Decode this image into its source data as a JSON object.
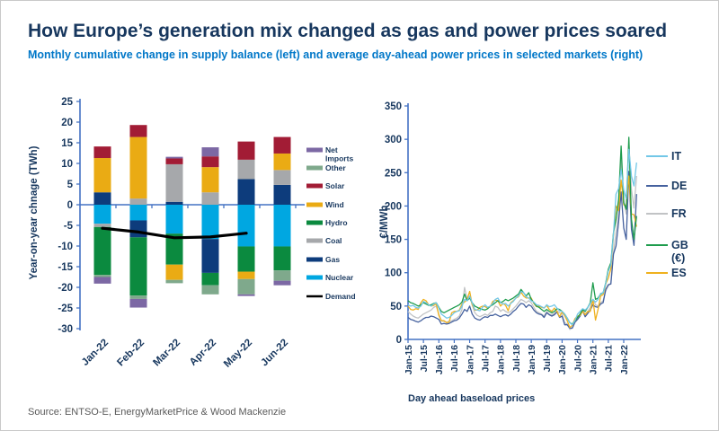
{
  "header": {
    "title": "How Europe’s generation mix changed as gas and power prices soared",
    "subtitle": "Monthly cumulative change in supply balance (left) and average day-ahead power prices in selected markets (right)"
  },
  "source": "Source: ENTSO-E, EnergyMarketPrice & Wood Mackenzie",
  "colors": {
    "title_navy": "#17375E",
    "subtitle_blue": "#0077C8",
    "axis_blue": "#4472C4",
    "source_gray": "#595959"
  },
  "chart_data": [
    {
      "type": "bar",
      "name": "supply-balance-stacked-bars",
      "ylabel": "Year-on-year chnage (TWh)",
      "ylim": [
        -30,
        25
      ],
      "ytick_step": 5,
      "categories": [
        "Jan-22",
        "Feb-22",
        "Mar-22",
        "Apr-22",
        "May-22",
        "Jun-22"
      ],
      "series": [
        {
          "name": "Net Imports",
          "color": "#7C68A4",
          "values": [
            -1.6,
            -2.1,
            0.4,
            2.2,
            -0.4,
            -1.1
          ]
        },
        {
          "name": "Other",
          "color": "#7FA98C",
          "values": [
            -0.5,
            -0.8,
            -0.8,
            -2.2,
            -3.7,
            -2.5
          ]
        },
        {
          "name": "Solar",
          "color": "#A21C35",
          "values": [
            2.8,
            2.9,
            1.4,
            2.6,
            4.4,
            4.0
          ]
        },
        {
          "name": "Wind",
          "color": "#EAAB14",
          "values": [
            8.3,
            14.9,
            -3.7,
            6.1,
            -1.8,
            4.0
          ]
        },
        {
          "name": "Hydro",
          "color": "#0B8A3F",
          "values": [
            -11.6,
            -14.1,
            -7.5,
            -3.0,
            -6.1,
            -5.8
          ]
        },
        {
          "name": "Coal",
          "color": "#A6A8AB",
          "values": [
            -0.8,
            1.5,
            9.1,
            3.0,
            4.7,
            3.6
          ]
        },
        {
          "name": "Gas",
          "color": "#0D3C7C",
          "values": [
            3.0,
            -4.1,
            0.7,
            -8.2,
            6.2,
            4.8
          ]
        },
        {
          "name": "Nuclear",
          "color": "#00A7E1",
          "values": [
            -4.6,
            -3.8,
            -7.0,
            -8.3,
            -10.1,
            -10.1
          ]
        },
        {
          "name": "Demand",
          "color": "#000000",
          "style": "line",
          "values": [
            -5.7,
            -6.6,
            -8.0,
            -7.8,
            -6.9,
            null
          ]
        }
      ],
      "legend_position": "right",
      "grid": false
    },
    {
      "type": "line",
      "name": "day-ahead-power-prices",
      "ylabel": "€/MWh",
      "caption": "Day ahead baseload prices",
      "ylim": [
        0,
        350
      ],
      "ytick_step": 50,
      "x_start": "Jan-15",
      "x_end": "Jun-22",
      "x_tick_labels": [
        "Jan-15",
        "Jul-15",
        "Jan-16",
        "Jul-16",
        "Jan-17",
        "Jul-17",
        "Jan-18",
        "Jul-18",
        "Jan-19",
        "Jul-19",
        "Jan-20",
        "Jul-20",
        "Jan-21",
        "Jul-21",
        "Jan-22"
      ],
      "series": [
        {
          "name": "IT",
          "color": "#72C7E7",
          "values": [
            52,
            50,
            51,
            48,
            47,
            50,
            57,
            55,
            52,
            50,
            53,
            55,
            47,
            38,
            35,
            32,
            33,
            36,
            40,
            42,
            43,
            50,
            60,
            58,
            65,
            55,
            45,
            44,
            43,
            48,
            52,
            48,
            50,
            54,
            60,
            62,
            55,
            53,
            54,
            50,
            54,
            57,
            62,
            65,
            72,
            70,
            64,
            62,
            58,
            56,
            52,
            51,
            49,
            47,
            52,
            49,
            50,
            52,
            47,
            43,
            42,
            38,
            32,
            25,
            22,
            28,
            38,
            42,
            46,
            44,
            48,
            54,
            60,
            56,
            60,
            69,
            70,
            84,
            102,
            112,
            158,
            218,
            226,
            255,
            224,
            211,
            285,
            245,
            230,
            265
          ]
        },
        {
          "name": "DE",
          "color": "#45619E",
          "values": [
            33,
            30,
            29,
            27,
            26,
            28,
            31,
            33,
            33,
            35,
            34,
            32,
            30,
            23,
            24,
            23,
            24,
            26,
            28,
            29,
            32,
            38,
            45,
            42,
            50,
            38,
            32,
            30,
            29,
            32,
            34,
            33,
            36,
            36,
            38,
            36,
            34,
            36,
            37,
            35,
            38,
            42,
            45,
            50,
            54,
            53,
            48,
            52,
            50,
            44,
            40,
            38,
            37,
            33,
            40,
            37,
            35,
            37,
            41,
            33,
            35,
            22,
            22,
            17,
            17,
            26,
            30,
            35,
            43,
            34,
            39,
            44,
            52,
            49,
            48,
            53,
            55,
            75,
            82,
            83,
            128,
            140,
            176,
            221,
            167,
            150,
            252,
            165,
            141,
            218
          ]
        },
        {
          "name": "FR",
          "color": "#C1C3C5",
          "values": [
            42,
            38,
            35,
            33,
            32,
            35,
            38,
            40,
            42,
            44,
            48,
            50,
            38,
            28,
            27,
            26,
            27,
            28,
            30,
            32,
            35,
            45,
            78,
            60,
            65,
            52,
            40,
            36,
            34,
            36,
            38,
            36,
            40,
            42,
            50,
            48,
            42,
            45,
            42,
            40,
            42,
            46,
            50,
            55,
            60,
            58,
            55,
            58,
            55,
            48,
            42,
            40,
            38,
            35,
            42,
            38,
            37,
            39,
            43,
            40,
            38,
            25,
            23,
            15,
            17,
            25,
            30,
            35,
            45,
            38,
            42,
            48,
            60,
            52,
            50,
            55,
            58,
            73,
            80,
            85,
            130,
            160,
            190,
            275,
            208,
            188,
            295,
            225,
            197,
            245
          ]
        },
        {
          "name": "GB (€)",
          "color": "#1E9C4D",
          "values": [
            58,
            55,
            54,
            52,
            50,
            52,
            55,
            53,
            51,
            52,
            54,
            55,
            48,
            42,
            40,
            42,
            44,
            46,
            48,
            50,
            52,
            56,
            68,
            58,
            62,
            55,
            50,
            48,
            46,
            45,
            44,
            46,
            50,
            52,
            55,
            58,
            55,
            57,
            60,
            58,
            60,
            62,
            65,
            68,
            75,
            70,
            65,
            70,
            60,
            55,
            50,
            48,
            45,
            42,
            45,
            42,
            40,
            42,
            46,
            45,
            42,
            38,
            32,
            25,
            23,
            28,
            33,
            38,
            45,
            42,
            48,
            55,
            85,
            60,
            62,
            68,
            70,
            85,
            105,
            115,
            160,
            180,
            210,
            290,
            205,
            195,
            303,
            180,
            150,
            185
          ]
        },
        {
          "name": "ES",
          "color": "#EFB11E",
          "values": [
            50,
            45,
            44,
            46,
            45,
            55,
            60,
            58,
            52,
            50,
            51,
            53,
            36,
            28,
            28,
            25,
            26,
            40,
            42,
            42,
            44,
            53,
            56,
            60,
            72,
            52,
            44,
            44,
            48,
            50,
            49,
            47,
            49,
            57,
            59,
            58,
            50,
            54,
            51,
            43,
            55,
            58,
            62,
            64,
            71,
            65,
            62,
            62,
            62,
            54,
            49,
            50,
            48,
            47,
            51,
            45,
            42,
            47,
            42,
            34,
            41,
            36,
            28,
            18,
            21,
            31,
            35,
            36,
            42,
            37,
            42,
            42,
            60,
            29,
            45,
            65,
            67,
            83,
            92,
            106,
            156,
            200,
            193,
            239,
            202,
            200,
            245,
            188,
            187,
            169
          ]
        }
      ],
      "legend_position": "right",
      "grid": false
    }
  ]
}
